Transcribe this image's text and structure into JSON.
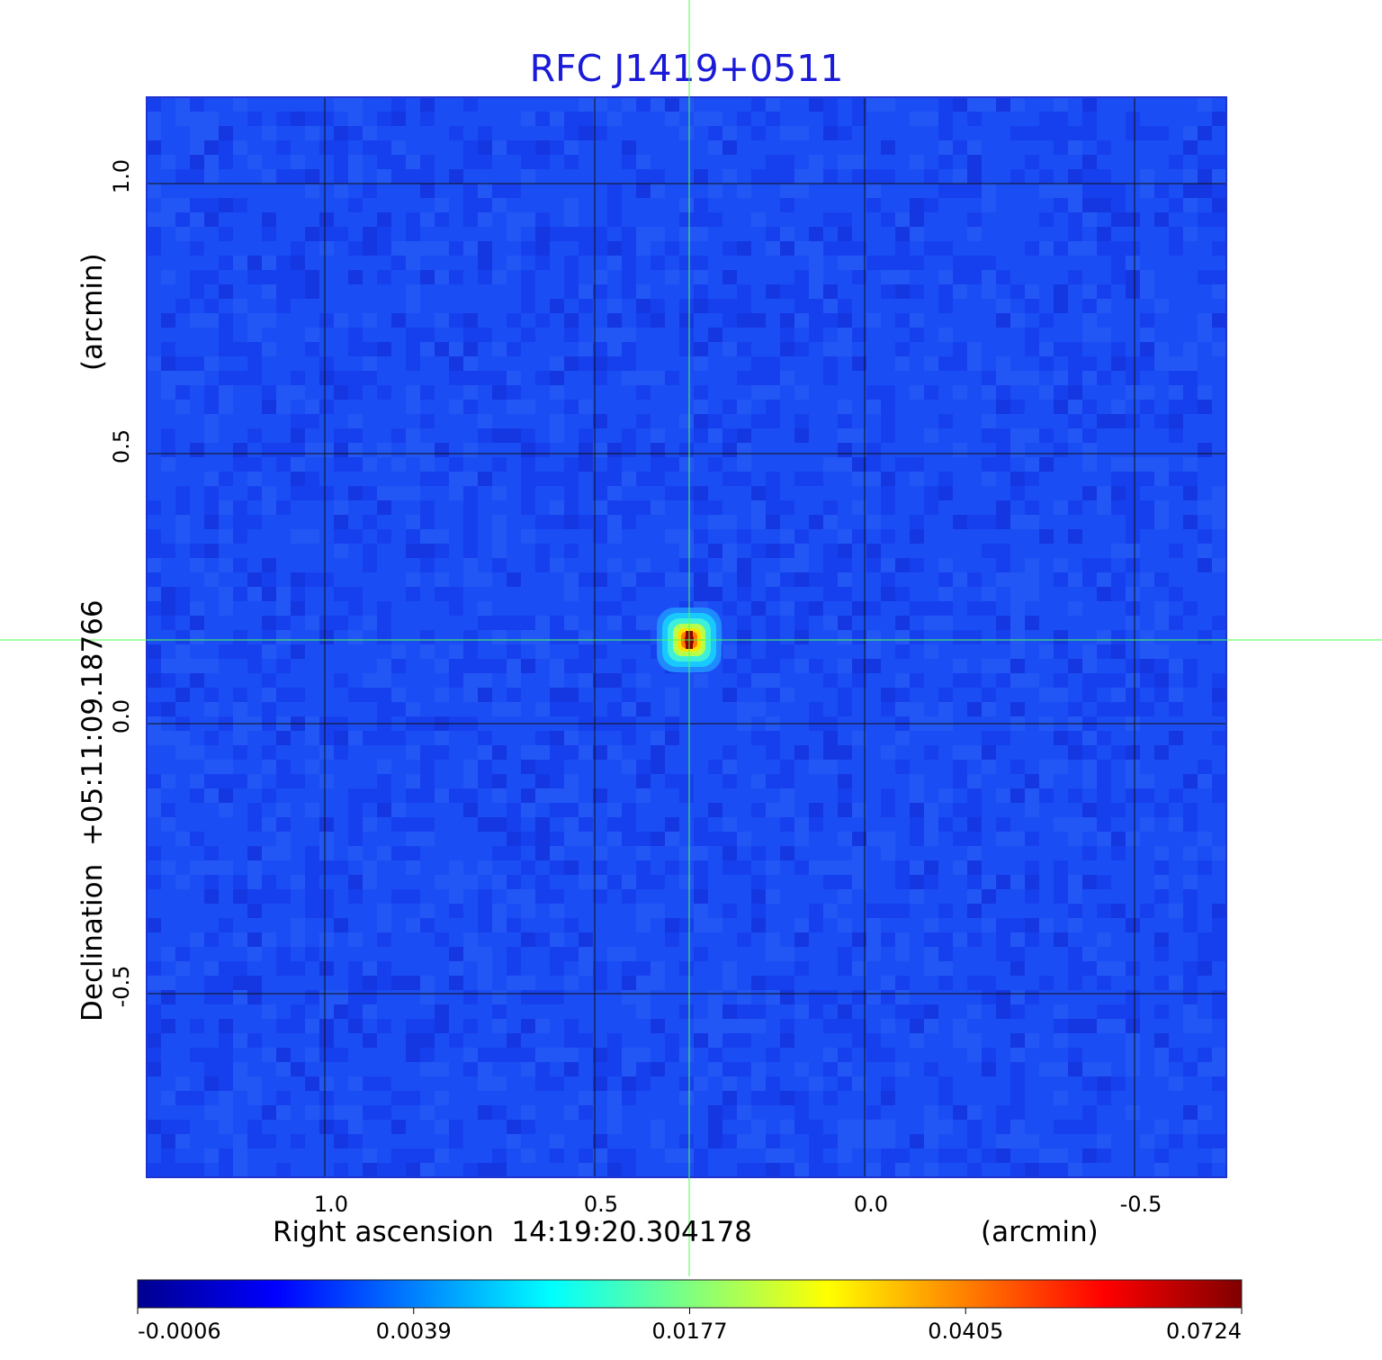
{
  "chart_data": {
    "type": "heatmap",
    "title": "RFC J1419+0511",
    "xlabel": "Right ascension  14:19:20.304178",
    "xunit": "(arcmin)",
    "ylabel": "Declination  +05:11:09.18766",
    "yunit": "(arcmin)",
    "xlim": [
      1.33,
      -0.67
    ],
    "ylim": [
      -0.84,
      1.16
    ],
    "x_ticks": [
      1.0,
      0.5,
      0.0,
      -0.5
    ],
    "x_tick_labels": [
      "1.0",
      "0.5",
      "0.0",
      "-0.5"
    ],
    "y_ticks": [
      1.0,
      0.5,
      0.0,
      -0.5
    ],
    "y_tick_labels": [
      "1.0",
      "0.5",
      "0.0",
      "-0.5"
    ],
    "grid": true,
    "crosshair": {
      "x": 0.325,
      "y": 0.155
    },
    "source_peak": {
      "x": 0.325,
      "y": 0.155,
      "value": 0.0724
    },
    "colorbar": {
      "ticks": [
        -0.0006,
        0.0039,
        0.0177,
        0.0405,
        0.0724
      ],
      "tick_labels": [
        "-0.0006",
        "0.0039",
        "0.0177",
        "0.0405",
        "0.0724"
      ],
      "colormap": "jet"
    }
  }
}
